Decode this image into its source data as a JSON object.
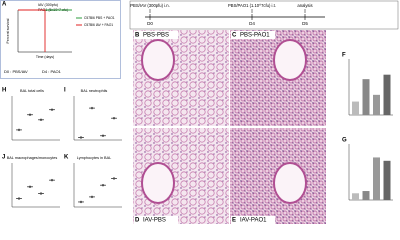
{
  "timeline": {
    "steps": [
      "PBS/IAV (300pfu) i.n.",
      "PBS/PAO1 (1.10^7cfu) i.t.",
      "analysis"
    ],
    "days": [
      "D0",
      "D4",
      "D5"
    ]
  },
  "survival": {
    "letter": "A",
    "top_labels": [
      "IAV (300pfu)",
      "PAO1 (5x10^7 cfu)"
    ],
    "y_label": "Percent survival",
    "x_label": "Time (days)",
    "notes": [
      "D0 : PBS/IAV",
      "D4 : PAO1"
    ],
    "xlim": [
      0,
      8
    ],
    "ylim": [
      0,
      100
    ],
    "series": [
      {
        "name": "C57Bl6 PBS + PAO1",
        "color": "#2e9e3e",
        "x": [
          0,
          8
        ],
        "values": [
          100,
          100
        ]
      },
      {
        "name": "C57Bl6 IAV + PAO1",
        "color": "#e02020",
        "x": [
          0,
          4,
          4
        ],
        "values": [
          100,
          100,
          0
        ]
      }
    ]
  },
  "images": [
    {
      "letter": "B",
      "label": "PBS-PBS"
    },
    {
      "letter": "C",
      "label": "PBS-PAO1"
    },
    {
      "letter": "D",
      "label": "IAV-PBS"
    },
    {
      "letter": "E",
      "label": "IAV-PAO1"
    }
  ],
  "bar_panels": [
    {
      "letter": "F",
      "ylim": [
        0,
        5
      ],
      "values": [
        1.2,
        3.2,
        1.8,
        3.6
      ]
    },
    {
      "letter": "G",
      "ylim": [
        0,
        5
      ],
      "values": [
        0.6,
        0.8,
        3.8,
        3.5
      ]
    }
  ],
  "dot_panels": [
    {
      "letter": "H",
      "title": "BAL total cells",
      "ylim": [
        0,
        5
      ],
      "values": [
        1.2,
        3,
        2.4,
        3.6
      ]
    },
    {
      "letter": "I",
      "title": "BAL neutrophils",
      "ylim": [
        0,
        5
      ],
      "values": [
        0.3,
        3.8,
        0.5,
        2.6
      ]
    },
    {
      "letter": "J",
      "title": "BAL macrophages/monocytes",
      "ylim": [
        0,
        5
      ],
      "values": [
        1,
        2.4,
        1.6,
        3.2
      ]
    },
    {
      "letter": "K",
      "title": "Lymphocytes in BAL",
      "ylim": [
        0,
        5
      ],
      "values": [
        0.6,
        1.2,
        2.6,
        3.4
      ]
    }
  ]
}
